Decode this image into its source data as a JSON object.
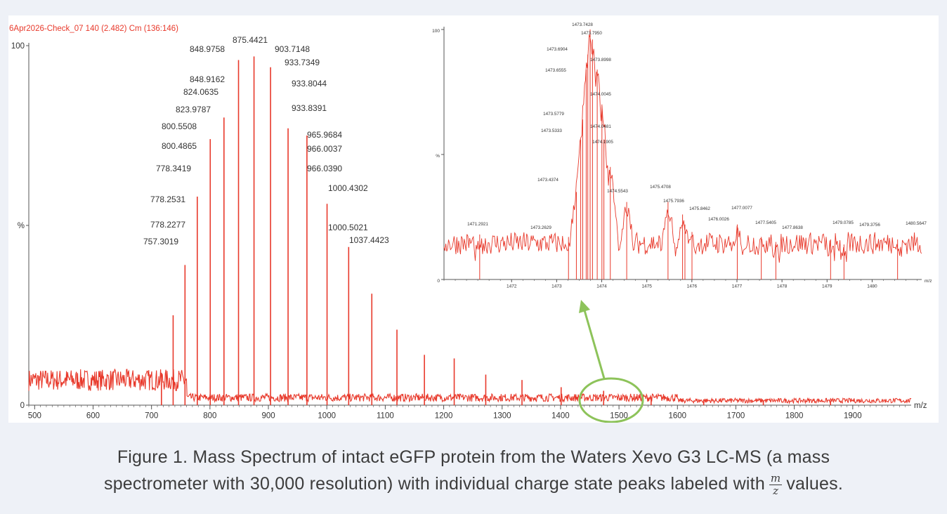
{
  "header_label": "6Apr2026-Check_07 140 (2.482) Cm (136:146)",
  "caption": {
    "line1": "Figure 1. Mass Spectrum of intact eGFP protein from the Waters Xevo G3 LC-MS (a mass",
    "line2_pre": "spectrometer with 30,000 resolution) with individual charge state peaks labeled with",
    "frac_num": "m",
    "frac_den": "z",
    "line2_post": "values."
  },
  "colors": {
    "trace": "#e8392b",
    "axis": "#555555",
    "annotation": "#8dc35a",
    "header": "#e8392b",
    "label": "#333333"
  },
  "chart_data": [
    {
      "type": "line",
      "title": "",
      "xlabel": "m/z",
      "ylabel": "%",
      "xlim": [
        490,
        2000
      ],
      "ylim": [
        0,
        100
      ],
      "x_ticks": [
        500,
        600,
        700,
        800,
        900,
        1000,
        1100,
        1200,
        1300,
        1400,
        1500,
        1600,
        1700,
        1800,
        1900
      ],
      "y_ticks": [
        "0",
        "%",
        "100"
      ],
      "peaks": [
        {
          "x": 717,
          "y": 9
        },
        {
          "x": 737,
          "y": 25
        },
        {
          "x": 757.3,
          "y": 39
        },
        {
          "x": 778.3,
          "y": 58
        },
        {
          "x": 800.5,
          "y": 74
        },
        {
          "x": 824.0,
          "y": 80
        },
        {
          "x": 848.9,
          "y": 96
        },
        {
          "x": 875.4,
          "y": 97
        },
        {
          "x": 903.7,
          "y": 94
        },
        {
          "x": 933.7,
          "y": 77
        },
        {
          "x": 965.96,
          "y": 75
        },
        {
          "x": 1000.4,
          "y": 56
        },
        {
          "x": 1037.4,
          "y": 44
        },
        {
          "x": 1077,
          "y": 31
        },
        {
          "x": 1120,
          "y": 21
        },
        {
          "x": 1167,
          "y": 14
        },
        {
          "x": 1218,
          "y": 13
        },
        {
          "x": 1272,
          "y": 8.5
        },
        {
          "x": 1334,
          "y": 7
        },
        {
          "x": 1401,
          "y": 5
        },
        {
          "x": 1473.7,
          "y": 4
        },
        {
          "x": 1555,
          "y": 2.2
        },
        {
          "x": 1645,
          "y": 1.6
        },
        {
          "x": 1747,
          "y": 1.3
        },
        {
          "x": 1862,
          "y": 1.1
        }
      ],
      "labels": [
        {
          "x": 848.9,
          "text": "848.9758"
        },
        {
          "x": 875.4,
          "text": "875.4421"
        },
        {
          "x": 903.7,
          "text": "903.7148"
        },
        {
          "x": 903.7,
          "text": "933.7349"
        },
        {
          "x": 848.9,
          "text": "848.9162"
        },
        {
          "x": 824.0,
          "text": "824.0635"
        },
        {
          "x": 903.7,
          "text": "933.8044"
        },
        {
          "x": 824.0,
          "text": "823.9787"
        },
        {
          "x": 903.7,
          "text": "933.8391"
        },
        {
          "x": 800.5,
          "text": "800.5508"
        },
        {
          "x": 965.96,
          "text": "965.9684"
        },
        {
          "x": 800.5,
          "text": "800.4865"
        },
        {
          "x": 965.96,
          "text": "966.0037"
        },
        {
          "x": 778.3,
          "text": "778.3419"
        },
        {
          "x": 965.96,
          "text": "966.0390"
        },
        {
          "x": 1000.4,
          "text": "1000.4302"
        },
        {
          "x": 778.3,
          "text": "778.2531"
        },
        {
          "x": 778.3,
          "text": "778.2277"
        },
        {
          "x": 1000.4,
          "text": "1000.5021"
        },
        {
          "x": 1037.4,
          "text": "1037.4423"
        },
        {
          "x": 757.3,
          "text": "757.3019"
        }
      ]
    },
    {
      "type": "line",
      "title": "",
      "xlabel": "m/z",
      "ylabel": "%",
      "xlim": [
        1470.5,
        1481.1
      ],
      "ylim": [
        0,
        100
      ],
      "x_ticks": [
        1472,
        1473,
        1474,
        1475,
        1476,
        1477,
        1478,
        1479,
        1480
      ],
      "y_ticks": [
        "0",
        "%",
        "100"
      ],
      "peaks": [
        {
          "x": 1471.2921,
          "y": 18
        },
        {
          "x": 1473.2629,
          "y": 17
        },
        {
          "x": 1473.4374,
          "y": 35
        },
        {
          "x": 1473.5333,
          "y": 56
        },
        {
          "x": 1473.5779,
          "y": 64
        },
        {
          "x": 1473.6555,
          "y": 84
        },
        {
          "x": 1473.6904,
          "y": 90
        },
        {
          "x": 1473.7428,
          "y": 100
        },
        {
          "x": 1473.795,
          "y": 96
        },
        {
          "x": 1473.8998,
          "y": 84
        },
        {
          "x": 1474.0045,
          "y": 70
        },
        {
          "x": 1474.0481,
          "y": 56
        },
        {
          "x": 1474.1905,
          "y": 45
        },
        {
          "x": 1474.5543,
          "y": 31
        },
        {
          "x": 1475.4708,
          "y": 31
        },
        {
          "x": 1475.7936,
          "y": 26
        },
        {
          "x": 1475.8462,
          "y": 22
        },
        {
          "x": 1476.0026,
          "y": 19
        },
        {
          "x": 1477.0077,
          "y": 22
        },
        {
          "x": 1477.5405,
          "y": 17
        },
        {
          "x": 1477.8638,
          "y": 15
        },
        {
          "x": 1479.0785,
          "y": 16
        },
        {
          "x": 1479.3756,
          "y": 14
        },
        {
          "x": 1480.5647,
          "y": 16
        }
      ],
      "labels": [
        {
          "x": 1473.7428,
          "text": "1473.7428"
        },
        {
          "x": 1473.795,
          "text": "1473.7950"
        },
        {
          "x": 1473.6904,
          "text": "1473.6904"
        },
        {
          "x": 1473.8998,
          "text": "1473.8998"
        },
        {
          "x": 1473.6555,
          "text": "1473.6555"
        },
        {
          "x": 1474.0045,
          "text": "1474.0045"
        },
        {
          "x": 1473.5779,
          "text": "1473.5779"
        },
        {
          "x": 1474.0481,
          "text": "1474.0481"
        },
        {
          "x": 1473.5333,
          "text": "1473.5333"
        },
        {
          "x": 1474.1905,
          "text": "1474.1905"
        },
        {
          "x": 1473.4374,
          "text": "1473.4374"
        },
        {
          "x": 1474.5543,
          "text": "1474.5543"
        },
        {
          "x": 1475.4708,
          "text": "1475.4708"
        },
        {
          "x": 1475.7936,
          "text": "1475.7936"
        },
        {
          "x": 1475.8462,
          "text": "1475.8462"
        },
        {
          "x": 1477.0077,
          "text": "1477.0077"
        },
        {
          "x": 1476.0026,
          "text": "1476.0026"
        },
        {
          "x": 1471.2921,
          "text": "1471.2921"
        },
        {
          "x": 1473.2629,
          "text": "1473.2629"
        },
        {
          "x": 1477.5405,
          "text": "1477.5405"
        },
        {
          "x": 1477.8638,
          "text": "1477.8638"
        },
        {
          "x": 1479.0785,
          "text": "1479.0785"
        },
        {
          "x": 1479.3756,
          "text": "1479.3756"
        },
        {
          "x": 1480.5647,
          "text": "1480.5647"
        }
      ]
    }
  ]
}
